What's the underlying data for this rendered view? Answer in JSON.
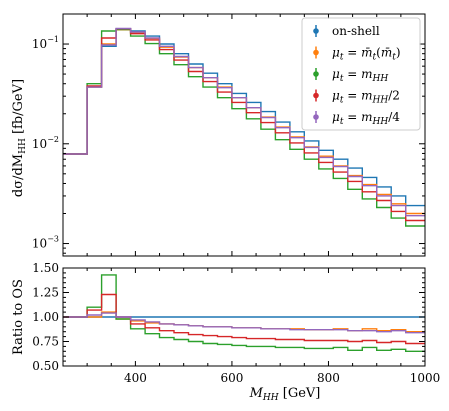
{
  "chart_data": [
    {
      "type": "line",
      "subtype": "step-histogram",
      "xlabel": "M_HH [GeV]",
      "ylabel": "dσ/dM_HH [fb/GeV]",
      "xlim": [
        250,
        1000
      ],
      "ylim": [
        0.00075,
        0.2
      ],
      "yscale": "log",
      "grid": false,
      "legend_position": "top-right",
      "x_tick_labels": [
        "400",
        "600",
        "800",
        "1000"
      ],
      "y_tick_labels": [
        {
          "base": "10",
          "exp": "−1",
          "value": 0.1
        },
        {
          "base": "10",
          "exp": "−2",
          "value": 0.01
        },
        {
          "base": "10",
          "exp": "−3",
          "value": 0.001
        }
      ],
      "bin_edges": [
        250,
        300,
        330,
        360,
        390,
        420,
        450,
        480,
        510,
        540,
        570,
        600,
        630,
        660,
        690,
        720,
        750,
        780,
        810,
        840,
        870,
        900,
        930,
        960,
        1000
      ],
      "series": [
        {
          "name": "on-shell",
          "color": "#1f77b4",
          "values": [
            0.0079,
            0.037,
            0.095,
            0.142,
            0.135,
            0.12,
            0.1,
            0.08,
            0.063,
            0.051,
            0.04,
            0.032,
            0.026,
            0.021,
            0.0165,
            0.0132,
            0.0107,
            0.0086,
            0.007,
            0.0057,
            0.0046,
            0.0037,
            0.003,
            0.0024
          ]
        },
        {
          "name": "μt = m̄t(m̄t)",
          "color": "#ff7f0e",
          "values": [
            0.0079,
            0.037,
            0.1,
            0.139,
            0.13,
            0.114,
            0.093,
            0.074,
            0.058,
            0.046,
            0.037,
            0.029,
            0.023,
            0.0185,
            0.0147,
            0.0117,
            0.0093,
            0.0075,
            0.006,
            0.0048,
            0.0039,
            0.0031,
            0.0025,
            0.002
          ]
        },
        {
          "name": "μt = mHH",
          "color": "#2ca02c",
          "values": [
            0.0079,
            0.04,
            0.135,
            0.14,
            0.12,
            0.101,
            0.08,
            0.062,
            0.047,
            0.037,
            0.029,
            0.0225,
            0.0178,
            0.014,
            0.011,
            0.0088,
            0.007,
            0.0056,
            0.0045,
            0.0035,
            0.0028,
            0.0023,
            0.0018,
            0.0015
          ]
        },
        {
          "name": "μt = mHH/2",
          "color": "#d62728",
          "values": [
            0.0079,
            0.038,
            0.115,
            0.142,
            0.127,
            0.11,
            0.088,
            0.069,
            0.053,
            0.042,
            0.033,
            0.026,
            0.0205,
            0.0163,
            0.0129,
            0.0102,
            0.0081,
            0.0065,
            0.0052,
            0.0042,
            0.0033,
            0.0027,
            0.0021,
            0.0017
          ]
        },
        {
          "name": "μt = mHH/4",
          "color": "#9467bd",
          "values": [
            0.0079,
            0.037,
            0.098,
            0.143,
            0.132,
            0.115,
            0.095,
            0.075,
            0.058,
            0.046,
            0.0365,
            0.029,
            0.023,
            0.0183,
            0.0145,
            0.0115,
            0.0092,
            0.0073,
            0.0059,
            0.0047,
            0.0038,
            0.003,
            0.0024,
            0.0019
          ]
        }
      ]
    },
    {
      "type": "line",
      "subtype": "step-ratio",
      "xlabel": "M_HH [GeV]",
      "ylabel": "Ratio to OS",
      "xlim": [
        250,
        1000
      ],
      "ylim": [
        0.5,
        1.5
      ],
      "grid": false,
      "x_tick_labels": [
        "400",
        "600",
        "800",
        "1000"
      ],
      "y_tick_labels": [
        "1.50",
        "1.25",
        "1.00",
        "0.75",
        "0.50"
      ],
      "bin_edges": [
        250,
        300,
        330,
        360,
        390,
        420,
        450,
        480,
        510,
        540,
        570,
        600,
        630,
        660,
        690,
        720,
        750,
        780,
        810,
        840,
        870,
        900,
        930,
        960,
        1000
      ],
      "series": [
        {
          "name": "on-shell",
          "color": "#1f77b4",
          "values": [
            1,
            1,
            1,
            1,
            1,
            1,
            1,
            1,
            1,
            1,
            1,
            1,
            1,
            1,
            1,
            1,
            1,
            1,
            1,
            1,
            1,
            1,
            1,
            1
          ]
        },
        {
          "name": "μt = m̄t(m̄t)",
          "color": "#ff7f0e",
          "values": [
            1.0,
            1.0,
            1.05,
            0.98,
            0.96,
            0.94,
            0.93,
            0.92,
            0.91,
            0.9,
            0.9,
            0.89,
            0.89,
            0.88,
            0.88,
            0.88,
            0.87,
            0.87,
            0.88,
            0.86,
            0.88,
            0.86,
            0.87,
            0.85
          ]
        },
        {
          "name": "μt = mHH",
          "color": "#2ca02c",
          "values": [
            1.0,
            1.1,
            1.43,
            0.98,
            0.88,
            0.83,
            0.79,
            0.77,
            0.75,
            0.73,
            0.72,
            0.71,
            0.7,
            0.7,
            0.69,
            0.69,
            0.68,
            0.68,
            0.69,
            0.66,
            0.69,
            0.66,
            0.67,
            0.65
          ]
        },
        {
          "name": "μt = mHH/2",
          "color": "#d62728",
          "values": [
            1.0,
            1.07,
            1.23,
            1.0,
            0.93,
            0.89,
            0.86,
            0.84,
            0.82,
            0.81,
            0.8,
            0.79,
            0.78,
            0.78,
            0.77,
            0.77,
            0.76,
            0.76,
            0.76,
            0.75,
            0.76,
            0.74,
            0.75,
            0.73
          ]
        },
        {
          "name": "μt = mHH/4",
          "color": "#9467bd",
          "values": [
            1.0,
            1.02,
            1.04,
            1.0,
            0.97,
            0.95,
            0.93,
            0.92,
            0.91,
            0.9,
            0.9,
            0.89,
            0.89,
            0.88,
            0.88,
            0.87,
            0.87,
            0.87,
            0.87,
            0.86,
            0.86,
            0.85,
            0.86,
            0.84
          ]
        }
      ]
    }
  ]
}
